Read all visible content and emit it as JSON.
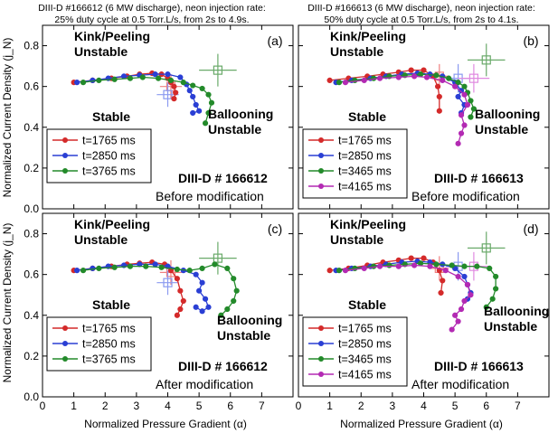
{
  "figure": {
    "left_title": "DIII-D #166612 (6 MW discharge), neon injection rate:\n25% duty cycle at 0.5 Torr.L/s,  from 2s to 4.9s.",
    "right_title": "DIII-D #166613 (6 MW discharge), neon injection rate:\n50% duty cycle at 0.5 Torr.L/s,  from 2s to 4.1s.",
    "ylabel": "Normalized Current Density (j_N)",
    "xlabel": "Normalized Pressure Gradient (α)"
  },
  "colors": {
    "red": "#d42a2a",
    "blue": "#2a3fd4",
    "green": "#238a2a",
    "magenta": "#b32ab3",
    "red_light": "#f08080",
    "blue_light": "#8a9af0",
    "green_light": "#6aaa6a",
    "magenta_light": "#e08ae0"
  },
  "chart_data": [
    {
      "id": "a",
      "type": "line",
      "panel_label": "(a)",
      "xlim": [
        0,
        8
      ],
      "ylim": [
        0,
        0.9
      ],
      "xticks": [
        "0",
        "1",
        "2",
        "3",
        "4",
        "5",
        "6",
        "7"
      ],
      "yticks": [
        "0.0",
        "0.2",
        "0.4",
        "0.6",
        "0.8"
      ],
      "annotations": {
        "kink": "Kink/Peeling\nUnstable",
        "stable": "Stable",
        "ballooning": "Ballooning\nUnstable",
        "shot": "DIII-D # 166612",
        "mod": "Before modification"
      },
      "legend": [
        "t=1765 ms",
        "t=2850 ms",
        "t=3765 ms"
      ],
      "series": [
        {
          "name": "t=1765 ms",
          "color": "red",
          "x": [
            1.0,
            1.6,
            2.2,
            2.7,
            3.1,
            3.5,
            3.8,
            4.0,
            4.1,
            4.2,
            4.25,
            4.2
          ],
          "y": [
            0.62,
            0.63,
            0.64,
            0.65,
            0.66,
            0.665,
            0.66,
            0.64,
            0.62,
            0.6,
            0.57,
            0.54
          ]
        },
        {
          "name": "t=2850 ms",
          "color": "blue",
          "x": [
            1.1,
            1.6,
            2.1,
            2.6,
            3.1,
            3.6,
            4.0,
            4.4,
            4.6,
            4.7,
            4.8,
            4.9,
            5.0,
            4.8
          ],
          "y": [
            0.62,
            0.63,
            0.64,
            0.65,
            0.655,
            0.66,
            0.66,
            0.645,
            0.61,
            0.58,
            0.55,
            0.51,
            0.48,
            0.47
          ]
        },
        {
          "name": "t=3765 ms",
          "color": "green",
          "x": [
            1.3,
            1.8,
            2.3,
            2.8,
            3.2,
            3.7,
            4.1,
            4.5,
            4.8,
            5.1,
            5.3,
            5.4,
            5.3,
            5.2
          ],
          "y": [
            0.62,
            0.63,
            0.635,
            0.64,
            0.645,
            0.64,
            0.63,
            0.62,
            0.605,
            0.59,
            0.56,
            0.52,
            0.47,
            0.42
          ]
        }
      ],
      "errorbars": [
        {
          "color": "red_light",
          "x": 4.1,
          "y": 0.6,
          "xerr": 0.35,
          "yerr": 0.06
        },
        {
          "color": "blue_light",
          "x": 4.0,
          "y": 0.56,
          "xerr": 0.35,
          "yerr": 0.06
        },
        {
          "color": "green_light",
          "x": 5.6,
          "y": 0.68,
          "xerr": 0.6,
          "yerr": 0.08
        }
      ]
    },
    {
      "id": "b",
      "type": "line",
      "panel_label": "(b)",
      "xlim": [
        0,
        8
      ],
      "ylim": [
        0,
        0.9
      ],
      "xticks": [
        "0",
        "1",
        "2",
        "3",
        "4",
        "5",
        "6",
        "7"
      ],
      "yticks": [
        "0.0",
        "0.2",
        "0.4",
        "0.6",
        "0.8"
      ],
      "annotations": {
        "kink": "Kink/Peeling\nUnstable",
        "stable": "Stable",
        "ballooning": "Ballooning\nUnstable",
        "shot": "DIII-D # 166613",
        "mod": "Before modification"
      },
      "legend": [
        "t=1765 ms",
        "t=2850 ms",
        "t=3465 ms",
        "t=4165 ms"
      ],
      "series": [
        {
          "name": "t=1765 ms",
          "color": "red",
          "x": [
            1.0,
            1.6,
            2.2,
            2.7,
            3.2,
            3.6,
            4.0,
            4.3,
            4.45,
            4.5,
            4.5
          ],
          "y": [
            0.63,
            0.64,
            0.65,
            0.66,
            0.67,
            0.68,
            0.68,
            0.65,
            0.6,
            0.55,
            0.48
          ]
        },
        {
          "name": "t=2850 ms",
          "color": "blue",
          "x": [
            1.2,
            1.7,
            2.3,
            2.8,
            3.3,
            3.8,
            4.2,
            4.6,
            5.0,
            5.2,
            5.1,
            5.3,
            5.2
          ],
          "y": [
            0.62,
            0.63,
            0.64,
            0.65,
            0.66,
            0.665,
            0.66,
            0.65,
            0.62,
            0.58,
            0.55,
            0.51,
            0.47
          ]
        },
        {
          "name": "t=3465 ms",
          "color": "green",
          "x": [
            1.3,
            1.8,
            2.4,
            2.9,
            3.4,
            3.9,
            4.4,
            4.8,
            5.1,
            5.3,
            5.4,
            5.5,
            5.6,
            5.5
          ],
          "y": [
            0.62,
            0.63,
            0.64,
            0.65,
            0.655,
            0.66,
            0.655,
            0.64,
            0.62,
            0.6,
            0.57,
            0.53,
            0.49,
            0.45
          ]
        },
        {
          "name": "t=4165 ms",
          "color": "magenta",
          "x": [
            1.5,
            2.1,
            2.6,
            3.2,
            3.7,
            4.1,
            4.6,
            5.0,
            5.3,
            5.4,
            5.2,
            5.3,
            5.2,
            5.1
          ],
          "y": [
            0.62,
            0.63,
            0.64,
            0.645,
            0.65,
            0.645,
            0.63,
            0.6,
            0.56,
            0.51,
            0.46,
            0.41,
            0.37,
            0.32
          ]
        }
      ],
      "errorbars": [
        {
          "color": "red_light",
          "x": 4.5,
          "y": 0.65,
          "xerr": 0.3,
          "yerr": 0.06
        },
        {
          "color": "blue_light",
          "x": 5.1,
          "y": 0.64,
          "xerr": 0.4,
          "yerr": 0.07
        },
        {
          "color": "green_light",
          "x": 6.0,
          "y": 0.73,
          "xerr": 0.6,
          "yerr": 0.08
        },
        {
          "color": "magenta_light",
          "x": 5.6,
          "y": 0.64,
          "xerr": 0.5,
          "yerr": 0.07
        }
      ]
    },
    {
      "id": "c",
      "type": "line",
      "panel_label": "(c)",
      "xlim": [
        0,
        8
      ],
      "ylim": [
        0,
        0.9
      ],
      "xticks": [
        "0",
        "1",
        "2",
        "3",
        "4",
        "5",
        "6",
        "7"
      ],
      "yticks": [
        "0.0",
        "0.2",
        "0.4",
        "0.6",
        "0.8"
      ],
      "annotations": {
        "kink": "Kink/Peeling\nUnstable",
        "stable": "Stable",
        "ballooning": "Ballooning\nUnstable",
        "shot": "DIII-D # 166612",
        "mod": "After modification"
      },
      "legend": [
        "t=1765 ms",
        "t=2850 ms",
        "t=3765 ms"
      ],
      "series": [
        {
          "name": "t=1765 ms",
          "color": "red",
          "x": [
            1.0,
            1.6,
            2.2,
            2.7,
            3.1,
            3.5,
            3.9,
            4.1,
            4.3,
            4.4,
            4.5,
            4.4,
            4.3
          ],
          "y": [
            0.62,
            0.63,
            0.64,
            0.65,
            0.655,
            0.66,
            0.65,
            0.62,
            0.58,
            0.52,
            0.47,
            0.43,
            0.4
          ]
        },
        {
          "name": "t=2850 ms",
          "color": "blue",
          "x": [
            1.1,
            1.6,
            2.1,
            2.6,
            3.1,
            3.6,
            4.0,
            4.5,
            4.9,
            5.1,
            5.0,
            5.2,
            5.3,
            5.1,
            4.9
          ],
          "y": [
            0.62,
            0.63,
            0.64,
            0.645,
            0.65,
            0.65,
            0.64,
            0.62,
            0.6,
            0.56,
            0.52,
            0.48,
            0.44,
            0.42,
            0.44
          ]
        },
        {
          "name": "t=3765 ms",
          "color": "green",
          "x": [
            1.3,
            1.8,
            2.3,
            2.8,
            3.3,
            3.8,
            4.3,
            4.7,
            5.1,
            5.5,
            5.9,
            6.1,
            6.2,
            6.1,
            5.9,
            5.7
          ],
          "y": [
            0.62,
            0.63,
            0.635,
            0.64,
            0.64,
            0.635,
            0.625,
            0.62,
            0.63,
            0.65,
            0.63,
            0.58,
            0.52,
            0.47,
            0.43,
            0.4
          ]
        }
      ],
      "errorbars": [
        {
          "color": "red_light",
          "x": 4.1,
          "y": 0.61,
          "xerr": 0.35,
          "yerr": 0.06
        },
        {
          "color": "blue_light",
          "x": 4.0,
          "y": 0.56,
          "xerr": 0.35,
          "yerr": 0.06
        },
        {
          "color": "green_light",
          "x": 5.6,
          "y": 0.68,
          "xerr": 0.6,
          "yerr": 0.08
        }
      ]
    },
    {
      "id": "d",
      "type": "line",
      "panel_label": "(d)",
      "xlim": [
        0,
        8
      ],
      "ylim": [
        0,
        0.9
      ],
      "xticks": [
        "0",
        "1",
        "2",
        "3",
        "4",
        "5",
        "6",
        "7"
      ],
      "yticks": [
        "0.0",
        "0.2",
        "0.4",
        "0.6",
        "0.8"
      ],
      "annotations": {
        "kink": "Kink/Peeling\nUnstable",
        "stable": "Stable",
        "ballooning": "Ballooning\nUnstable",
        "shot": "DIII-D # 166613",
        "mod": "After modification"
      },
      "legend": [
        "t=1765 ms",
        "t=2850 ms",
        "t=3465 ms",
        "t=4165 ms"
      ],
      "series": [
        {
          "name": "t=1765 ms",
          "color": "red",
          "x": [
            1.0,
            1.6,
            2.2,
            2.7,
            3.2,
            3.6,
            4.0,
            4.3,
            4.5,
            4.6,
            4.55
          ],
          "y": [
            0.62,
            0.63,
            0.645,
            0.66,
            0.67,
            0.68,
            0.68,
            0.66,
            0.62,
            0.57,
            0.51
          ]
        },
        {
          "name": "t=2850 ms",
          "color": "blue",
          "x": [
            1.2,
            1.7,
            2.3,
            2.8,
            3.3,
            3.8,
            4.2,
            4.6,
            5.0,
            5.3,
            5.4,
            5.5,
            5.4
          ],
          "y": [
            0.62,
            0.63,
            0.64,
            0.65,
            0.66,
            0.665,
            0.66,
            0.65,
            0.63,
            0.59,
            0.55,
            0.51,
            0.48
          ]
        },
        {
          "name": "t=3465 ms",
          "color": "green",
          "x": [
            1.3,
            1.8,
            2.4,
            2.9,
            3.4,
            3.9,
            4.4,
            4.9,
            5.3,
            5.7,
            6.1,
            6.3,
            6.3,
            6.2,
            6.0
          ],
          "y": [
            0.62,
            0.63,
            0.64,
            0.645,
            0.65,
            0.655,
            0.65,
            0.645,
            0.64,
            0.64,
            0.63,
            0.59,
            0.53,
            0.48,
            0.44
          ]
        },
        {
          "name": "t=4165 ms",
          "color": "magenta",
          "x": [
            1.5,
            2.1,
            2.6,
            3.2,
            3.7,
            4.2,
            4.7,
            5.1,
            5.4,
            5.5,
            5.3,
            5.2,
            5.0,
            5.1,
            4.9
          ],
          "y": [
            0.62,
            0.63,
            0.64,
            0.64,
            0.645,
            0.64,
            0.62,
            0.59,
            0.55,
            0.5,
            0.47,
            0.43,
            0.4,
            0.37,
            0.33
          ]
        }
      ],
      "errorbars": [
        {
          "color": "red_light",
          "x": 4.5,
          "y": 0.63,
          "xerr": 0.3,
          "yerr": 0.06
        },
        {
          "color": "blue_light",
          "x": 5.1,
          "y": 0.64,
          "xerr": 0.4,
          "yerr": 0.07
        },
        {
          "color": "green_light",
          "x": 6.0,
          "y": 0.73,
          "xerr": 0.6,
          "yerr": 0.08
        },
        {
          "color": "magenta_light",
          "x": 5.6,
          "y": 0.64,
          "xerr": 0.5,
          "yerr": 0.07
        }
      ]
    }
  ]
}
